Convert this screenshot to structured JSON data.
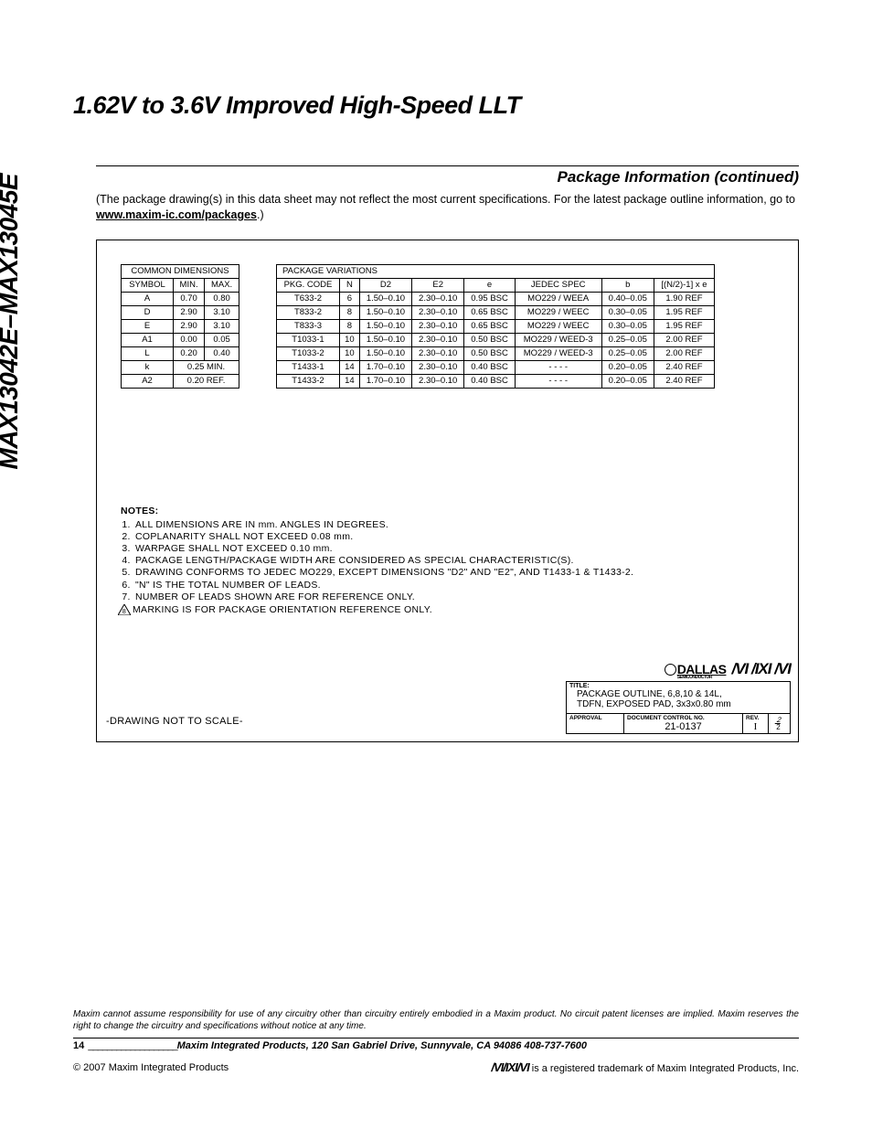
{
  "title": "1.62V to 3.6V Improved High-Speed LLT",
  "side_label": "MAX13042E–MAX13045E",
  "section_heading": "Package Information (continued)",
  "intro_text": "(The package drawing(s) in this data sheet may not reflect the most current specifications. For the latest package outline information, go to ",
  "intro_link": "www.maxim-ic.com/packages",
  "intro_tail": ".)",
  "common_dimensions": {
    "title": "COMMON DIMENSIONS",
    "headers": [
      "SYMBOL",
      "MIN.",
      "MAX."
    ],
    "rows": [
      [
        "A",
        "0.70",
        "0.80"
      ],
      [
        "D",
        "2.90",
        "3.10"
      ],
      [
        "E",
        "2.90",
        "3.10"
      ],
      [
        "A1",
        "0.00",
        "0.05"
      ],
      [
        "L",
        "0.20",
        "0.40"
      ]
    ],
    "span_rows": [
      [
        "k",
        "0.25 MIN."
      ],
      [
        "A2",
        "0.20 REF."
      ]
    ]
  },
  "package_variations": {
    "title": "PACKAGE VARIATIONS",
    "headers": [
      "PKG. CODE",
      "N",
      "D2",
      "E2",
      "e",
      "JEDEC SPEC",
      "b",
      "[(N/2)-1] x e"
    ],
    "rows": [
      [
        "T633-2",
        "6",
        "1.50–0.10",
        "2.30–0.10",
        "0.95 BSC",
        "MO229 / WEEA",
        "0.40–0.05",
        "1.90 REF"
      ],
      [
        "T833-2",
        "8",
        "1.50–0.10",
        "2.30–0.10",
        "0.65 BSC",
        "MO229 / WEEC",
        "0.30–0.05",
        "1.95 REF"
      ],
      [
        "T833-3",
        "8",
        "1.50–0.10",
        "2.30–0.10",
        "0.65 BSC",
        "MO229 / WEEC",
        "0.30–0.05",
        "1.95 REF"
      ],
      [
        "T1033-1",
        "10",
        "1.50–0.10",
        "2.30–0.10",
        "0.50 BSC",
        "MO229 / WEED-3",
        "0.25–0.05",
        "2.00 REF"
      ],
      [
        "T1033-2",
        "10",
        "1.50–0.10",
        "2.30–0.10",
        "0.50 BSC",
        "MO229 / WEED-3",
        "0.25–0.05",
        "2.00 REF"
      ],
      [
        "T1433-1",
        "14",
        "1.70–0.10",
        "2.30–0.10",
        "0.40 BSC",
        "- - - -",
        "0.20–0.05",
        "2.40 REF"
      ],
      [
        "T1433-2",
        "14",
        "1.70–0.10",
        "2.30–0.10",
        "0.40 BSC",
        "- - - -",
        "0.20–0.05",
        "2.40 REF"
      ]
    ]
  },
  "notes": {
    "title": "NOTES:",
    "items": [
      "ALL DIMENSIONS ARE IN mm. ANGLES IN DEGREES.",
      "COPLANARITY SHALL NOT EXCEED 0.08 mm.",
      "WARPAGE SHALL NOT EXCEED 0.10 mm.",
      "PACKAGE LENGTH/PACKAGE WIDTH ARE CONSIDERED AS SPECIAL CHARACTERISTIC(S).",
      "DRAWING CONFORMS TO JEDEC MO229, EXCEPT DIMENSIONS \"D2\" AND \"E2\", AND T1433-1 & T1433-2.",
      "\"N\" IS THE TOTAL NUMBER OF LEADS.",
      "NUMBER OF LEADS SHOWN ARE FOR REFERENCE ONLY."
    ],
    "note8": "MARKING IS FOR PACKAGE ORIENTATION REFERENCE ONLY."
  },
  "drawing_scale": "-DRAWING NOT TO SCALE-",
  "title_block": {
    "dallas": "DALLAS",
    "dallas_sub": "SEMICONDUCTOR",
    "maxim": "/VI /IXI /VI",
    "title_label": "TITLE:",
    "title_text_1": "PACKAGE OUTLINE, 6,8,10 & 14L,",
    "title_text_2": "TDFN, EXPOSED PAD, 3x3x0.80 mm",
    "approval_label": "APPROVAL",
    "doc_label": "DOCUMENT CONTROL NO.",
    "doc_val": "21-0137",
    "rev_label": "REV.",
    "rev_val": "I",
    "sheet_top": "2",
    "sheet_bot": "2"
  },
  "disclaimer": "Maxim cannot assume responsibility for use of any circuitry other than circuitry entirely embodied in a Maxim product. No circuit patent licenses are implied. Maxim reserves the right to change the circuitry and specifications without notice at any time.",
  "page_number": "14",
  "address": "Maxim Integrated Products, 120 San Gabriel Drive, Sunnyvale, CA  94086 408-737-7600",
  "copyright": "© 2007 Maxim Integrated Products",
  "maxim_inline": "/VI/IXI/VI",
  "trademark": " is a registered trademark of Maxim Integrated Products, Inc."
}
